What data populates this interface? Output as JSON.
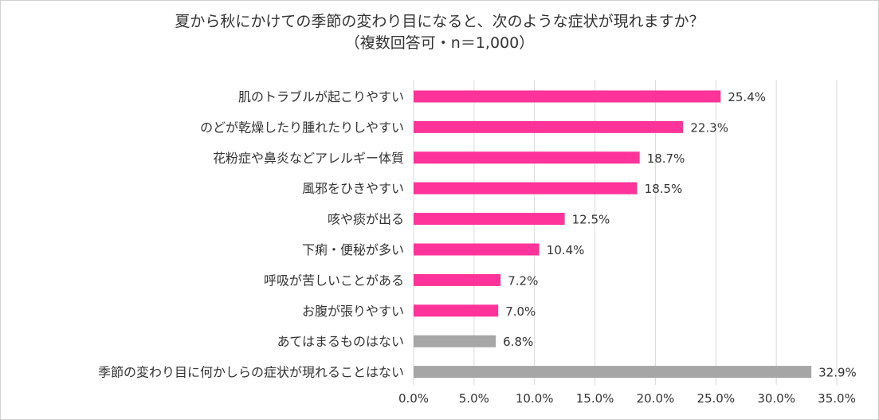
{
  "chart_data": {
    "type": "bar",
    "orientation": "horizontal",
    "title": "夏から秋にかけての季節の変わり目になると、次のような症状が現れますか？",
    "subtitle": "（複数回答可・n＝1,000）",
    "categories": [
      "肌のトラブルが起こりやすい",
      "のどが乾燥したり腫れたりしやすい",
      "花粉症や鼻炎などアレルギー体質",
      "風邪をひきやすい",
      "咳や痰が出る",
      "下痢・便秘が多い",
      "呼吸が苦しいことがある",
      "お腹が張りやすい",
      "あてはまるものはない",
      "季節の変わり目に何かしらの症状が現れることはない"
    ],
    "values": [
      25.4,
      22.3,
      18.7,
      18.5,
      12.5,
      10.4,
      7.2,
      7.0,
      6.8,
      32.9
    ],
    "data_labels": [
      "25.4%",
      "22.3%",
      "18.7%",
      "18.5%",
      "12.5%",
      "10.4%",
      "7.2%",
      "7.0%",
      "6.8%",
      "32.9%"
    ],
    "bar_colors": [
      "#ff3399",
      "#ff3399",
      "#ff3399",
      "#ff3399",
      "#ff3399",
      "#ff3399",
      "#ff3399",
      "#ff3399",
      "#a6a6a6",
      "#a6a6a6"
    ],
    "xlim": [
      0,
      35
    ],
    "xticks": [
      0,
      5,
      10,
      15,
      20,
      25,
      30,
      35
    ],
    "xtick_labels": [
      "0.0%",
      "5.0%",
      "10.0%",
      "15.0%",
      "20.0%",
      "25.0%",
      "30.0%",
      "35.0%"
    ],
    "gridlines": "vertical",
    "legend": "none",
    "grid_color": "#d9d9d9"
  }
}
